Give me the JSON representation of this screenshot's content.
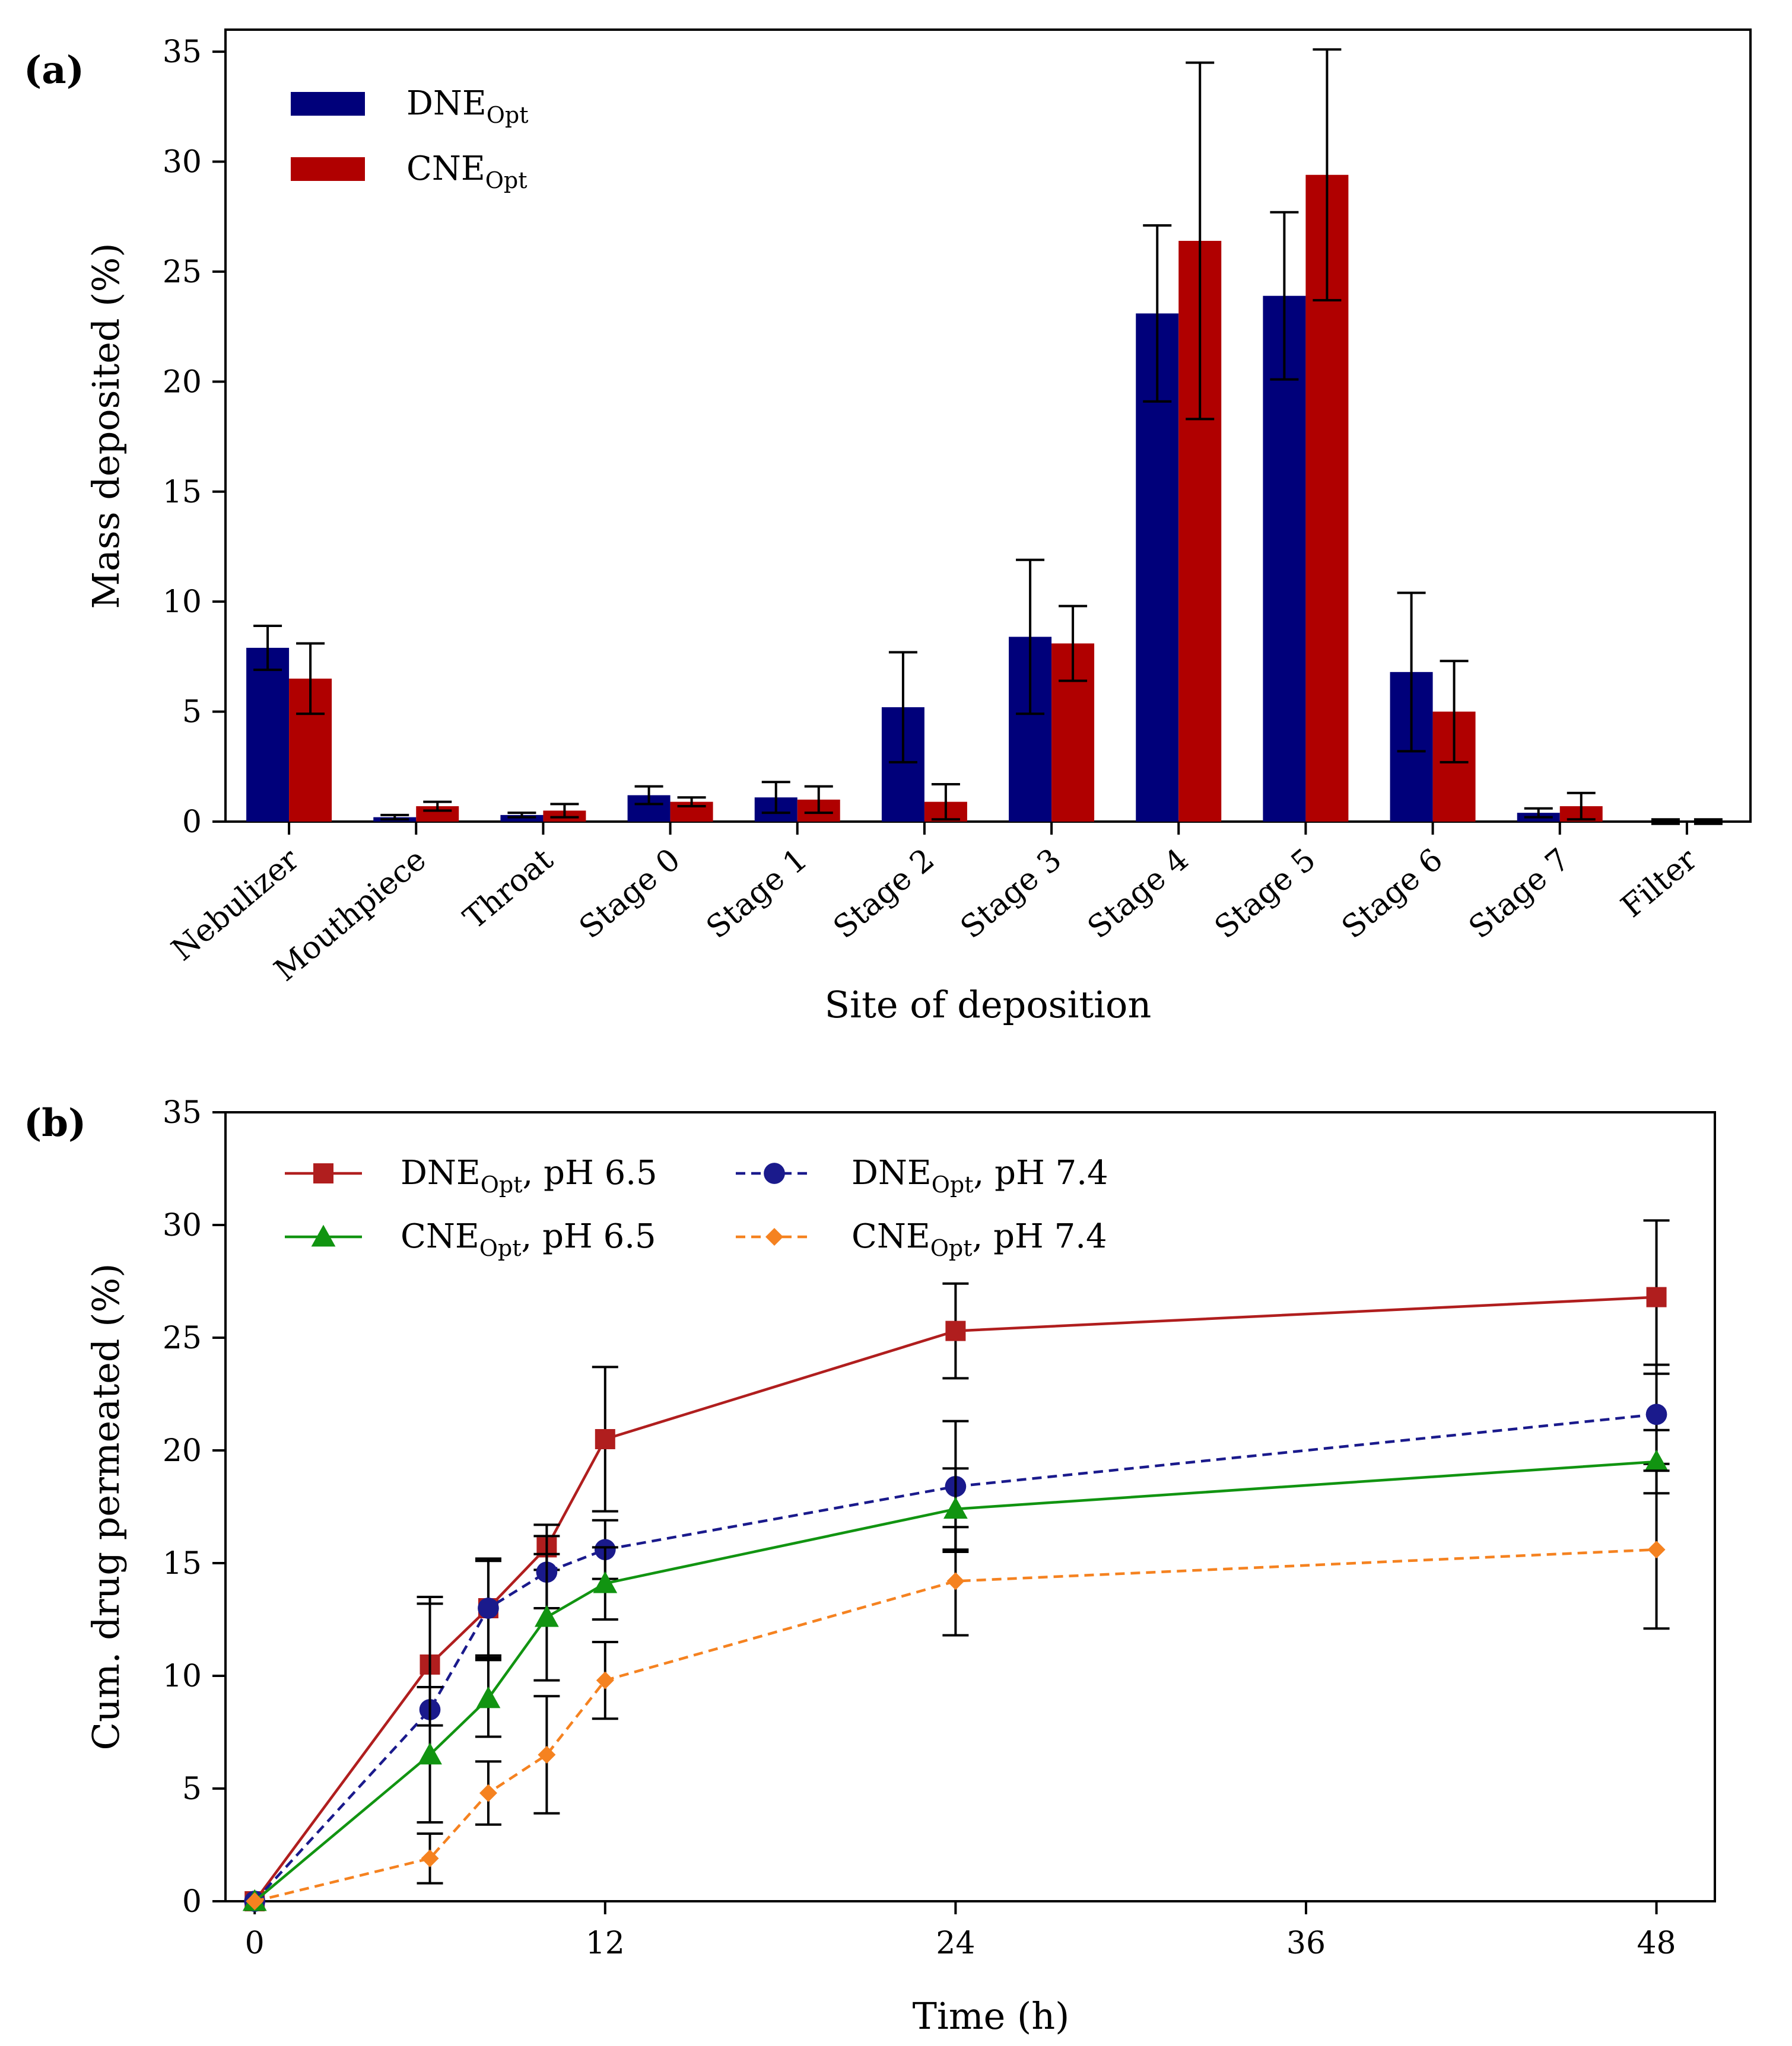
{
  "chart_data": [
    {
      "panel_label": "(a)",
      "type": "bar",
      "xlabel": "Site of deposition",
      "ylabel": "Mass deposited (%)",
      "ylim": [
        0,
        36
      ],
      "yticks": [
        0,
        5,
        10,
        15,
        20,
        25,
        30,
        35
      ],
      "categories": [
        "Nebulizer",
        "Mouthpiece",
        "Throat",
        "Stage 0",
        "Stage 1",
        "Stage 2",
        "Stage 3",
        "Stage 4",
        "Stage 5",
        "Stage 6",
        "Stage 7",
        "Filter"
      ],
      "legend_position": "top-left",
      "grid": false,
      "series": [
        {
          "name": "DNE",
          "name_sub": "Opt",
          "color": "#00007a",
          "values": [
            7.9,
            0.2,
            0.3,
            1.2,
            1.1,
            5.2,
            8.4,
            23.1,
            23.9,
            6.8,
            0.4,
            0.0
          ],
          "errors": [
            1.0,
            0.1,
            0.1,
            0.4,
            0.7,
            2.5,
            3.5,
            4.0,
            3.8,
            3.6,
            0.2,
            0.1
          ]
        },
        {
          "name": "CNE",
          "name_sub": "Opt",
          "color": "#b00000",
          "values": [
            6.5,
            0.7,
            0.5,
            0.9,
            1.0,
            0.9,
            8.1,
            26.4,
            29.4,
            5.0,
            0.7,
            0.0
          ],
          "errors": [
            1.6,
            0.2,
            0.3,
            0.2,
            0.6,
            0.8,
            1.7,
            8.1,
            5.7,
            2.3,
            0.6,
            0.1
          ]
        }
      ]
    },
    {
      "panel_label": "(b)",
      "type": "line",
      "xlabel": "Time (h)",
      "ylabel": "Cum. drug permeated (%)",
      "xlim": [
        -1,
        50
      ],
      "ylim": [
        0,
        35
      ],
      "xticks": [
        0,
        12,
        24,
        36,
        48
      ],
      "yticks": [
        0,
        5,
        10,
        15,
        20,
        25,
        30,
        35
      ],
      "x": [
        0,
        6,
        8,
        10,
        12,
        24,
        48
      ],
      "legend_position": "top-left",
      "grid": false,
      "series": [
        {
          "name": "DNE",
          "name_sub": "Opt",
          "name_suffix": ", pH 6.5",
          "color": "#b01e1e",
          "marker": "square",
          "dashed": false,
          "values": [
            0,
            10.5,
            13.0,
            15.7,
            20.5,
            25.3,
            26.8
          ],
          "errors": [
            0,
            2.7,
            2.1,
            1.0,
            3.2,
            2.1,
            3.4
          ]
        },
        {
          "name": "DNE",
          "name_sub": "Opt",
          "name_suffix": ", pH 7.4",
          "color": "#1a1a8c",
          "marker": "circle",
          "dashed": true,
          "values": [
            0,
            8.5,
            13.0,
            14.6,
            15.6,
            18.4,
            21.6
          ],
          "errors": [
            0,
            5.0,
            2.2,
            1.6,
            1.3,
            2.9,
            2.2
          ]
        },
        {
          "name": "CNE",
          "name_sub": "Opt",
          "name_suffix": ", pH 6.5",
          "color": "#119411",
          "marker": "triangle",
          "dashed": false,
          "values": [
            0,
            6.5,
            9.0,
            12.6,
            14.1,
            17.4,
            19.5
          ],
          "errors": [
            0,
            3.0,
            1.7,
            2.8,
            1.6,
            1.8,
            1.4
          ]
        },
        {
          "name": "CNE",
          "name_sub": "Opt",
          "name_suffix": ", pH 7.4",
          "color": "#f58220",
          "marker": "diamond",
          "dashed": true,
          "values": [
            0,
            1.9,
            4.8,
            6.5,
            9.8,
            14.2,
            15.6
          ],
          "errors": [
            0,
            1.1,
            1.4,
            2.6,
            1.7,
            2.4,
            3.5
          ]
        }
      ]
    }
  ]
}
